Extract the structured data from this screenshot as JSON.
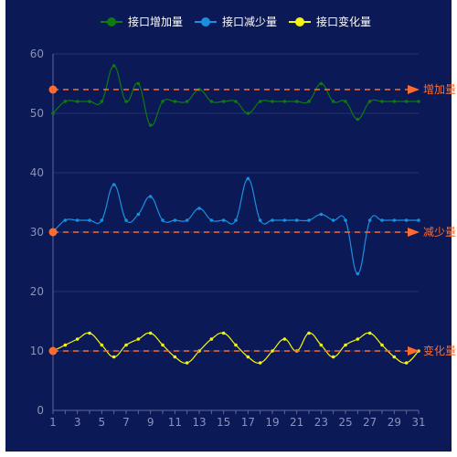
{
  "chart_data": {
    "type": "line",
    "title": "",
    "xlabel": "",
    "ylabel": "",
    "x": [
      1,
      2,
      3,
      4,
      5,
      6,
      7,
      8,
      9,
      10,
      11,
      12,
      13,
      14,
      15,
      16,
      17,
      18,
      19,
      20,
      21,
      22,
      23,
      24,
      25,
      26,
      27,
      28,
      29,
      30,
      31
    ],
    "x_tick_labels": [
      "1",
      "3",
      "5",
      "7",
      "9",
      "11",
      "13",
      "15",
      "17",
      "19",
      "21",
      "23",
      "25",
      "27",
      "29",
      "31"
    ],
    "y_tick_labels": [
      "0",
      "10",
      "20",
      "30",
      "40",
      "50",
      "60"
    ],
    "ylim": [
      0,
      60
    ],
    "grid": true,
    "legend_position": "top-center",
    "series": [
      {
        "name": "接口增加量",
        "color": "#0f7a0f",
        "values": [
          50,
          52,
          52,
          52,
          52,
          58,
          52,
          55,
          48,
          52,
          52,
          52,
          54,
          52,
          52,
          52,
          50,
          52,
          52,
          52,
          52,
          52,
          55,
          52,
          52,
          49,
          52,
          52,
          52,
          52,
          52
        ]
      },
      {
        "name": "接口减少量",
        "color": "#1a8fe0",
        "values": [
          30,
          32,
          32,
          32,
          32,
          38,
          32,
          33,
          36,
          32,
          32,
          32,
          34,
          32,
          32,
          32,
          39,
          32,
          32,
          32,
          32,
          32,
          33,
          32,
          32,
          23,
          32,
          32,
          32,
          32,
          32
        ]
      },
      {
        "name": "接口变化量",
        "color": "#f5f510",
        "values": [
          10,
          11,
          12,
          13,
          11,
          9,
          11,
          12,
          13,
          11,
          9,
          8,
          10,
          12,
          13,
          11,
          9,
          8,
          10,
          12,
          10,
          13,
          11,
          9,
          11,
          12,
          13,
          11,
          9,
          8,
          10
        ]
      }
    ],
    "mark_lines": [
      {
        "label": "增加量",
        "value": 54,
        "color": "#ff6b2e"
      },
      {
        "label": "减少量",
        "value": 30,
        "color": "#ff6b2e"
      },
      {
        "label": "变化量",
        "value": 10,
        "color": "#ff6b2e"
      }
    ]
  }
}
